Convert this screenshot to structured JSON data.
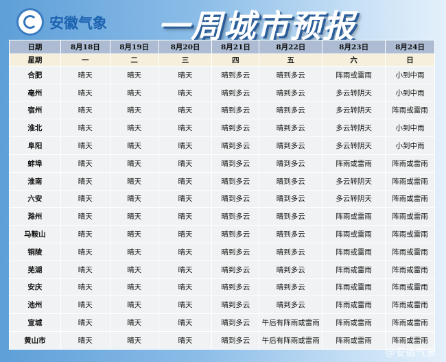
{
  "header": {
    "brand": "安徽气象",
    "title": "一周城市预报",
    "logo_icon": "anhui-meteorology-logo"
  },
  "table": {
    "columns": [
      "日期",
      "8月18日",
      "8月19日",
      "8月20日",
      "8月21日",
      "8月22日",
      "8月23日",
      "8月24日"
    ],
    "weekdays": [
      "星期",
      "一",
      "二",
      "三",
      "四",
      "五",
      "六",
      "日"
    ],
    "rows": [
      [
        "合肥",
        "晴天",
        "晴天",
        "晴天",
        "晴到多云",
        "晴到多云",
        "阵雨或雷雨",
        "小到中雨"
      ],
      [
        "亳州",
        "晴天",
        "晴天",
        "晴天",
        "晴到多云",
        "晴到多云",
        "多云转阴天",
        "小到中雨"
      ],
      [
        "宿州",
        "晴天",
        "晴天",
        "晴天",
        "晴到多云",
        "晴到多云",
        "多云转阴天",
        "阵雨或雷雨"
      ],
      [
        "淮北",
        "晴天",
        "晴天",
        "晴天",
        "晴到多云",
        "晴到多云",
        "多云转阴天",
        "小到中雨"
      ],
      [
        "阜阳",
        "晴天",
        "晴天",
        "晴天",
        "晴到多云",
        "晴到多云",
        "多云转阴天",
        "小到中雨"
      ],
      [
        "蚌埠",
        "晴天",
        "晴天",
        "晴天",
        "晴到多云",
        "晴到多云",
        "阵雨或雷雨",
        "阵雨或雷雨"
      ],
      [
        "淮南",
        "晴天",
        "晴天",
        "晴天",
        "晴到多云",
        "晴到多云",
        "多云转阴天",
        "阵雨或雷雨"
      ],
      [
        "六安",
        "晴天",
        "晴天",
        "晴天",
        "晴到多云",
        "晴到多云",
        "多云转阴天",
        "阵雨或雷雨"
      ],
      [
        "滁州",
        "晴天",
        "晴天",
        "晴天",
        "晴到多云",
        "晴到多云",
        "阵雨或雷雨",
        "阵雨或雷雨"
      ],
      [
        "马鞍山",
        "晴天",
        "晴天",
        "晴天",
        "晴到多云",
        "晴到多云",
        "阵雨或雷雨",
        "阵雨或雷雨"
      ],
      [
        "铜陵",
        "晴天",
        "晴天",
        "晴天",
        "晴到多云",
        "晴到多云",
        "阵雨或雷雨",
        "阵雨或雷雨"
      ],
      [
        "芜湖",
        "晴天",
        "晴天",
        "晴天",
        "晴到多云",
        "晴到多云",
        "阵雨或雷雨",
        "阵雨或雷雨"
      ],
      [
        "安庆",
        "晴天",
        "晴天",
        "晴天",
        "晴到多云",
        "晴到多云",
        "阵雨或雷雨",
        "阵雨或雷雨"
      ],
      [
        "池州",
        "晴天",
        "晴天",
        "晴天",
        "晴到多云",
        "晴到多云",
        "阵雨或雷雨",
        "阵雨或雷雨"
      ],
      [
        "宣城",
        "晴天",
        "晴天",
        "晴天",
        "晴到多云",
        "午后有阵雨或雷雨",
        "阵雨或雷雨",
        "阵雨或雷雨"
      ],
      [
        "黄山市",
        "晴天",
        "晴天",
        "晴天",
        "晴到多云",
        "午后有阵雨或雷雨",
        "阵雨或雷雨",
        "阵雨或雷雨"
      ]
    ]
  },
  "watermark": "@安徽气象"
}
